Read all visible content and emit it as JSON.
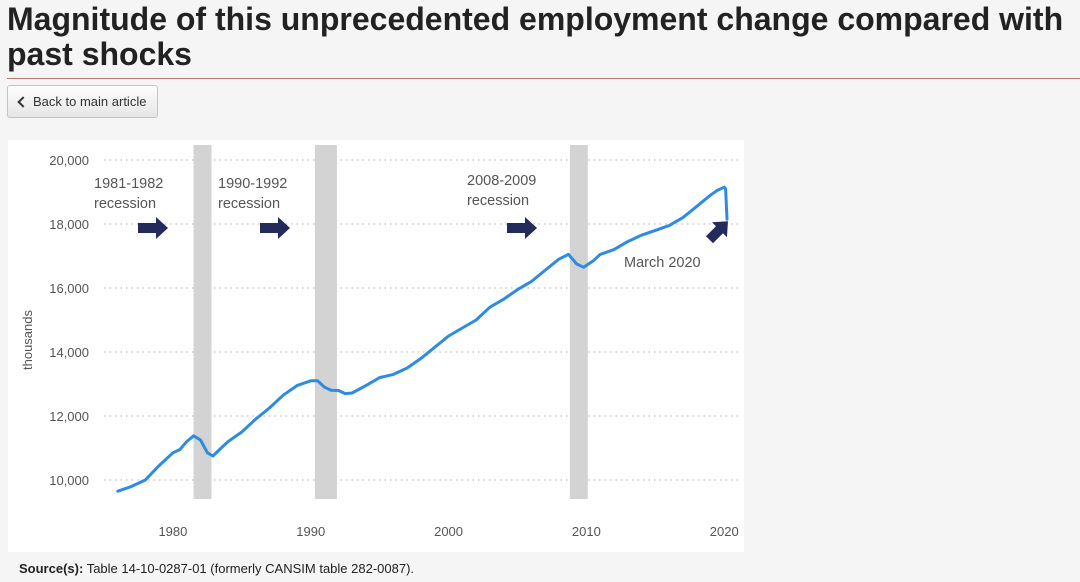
{
  "page": {
    "title": "Magnitude of this unprecedented employment change compared with past shocks",
    "back_label": "Back to main article",
    "source_label": "Source(s):",
    "source_text": "Table 14-10-0287-01 (formerly CANSIM table 282-0087)."
  },
  "colors": {
    "line": "#2e8be0",
    "recession_band": "#d3d3d3",
    "arrow": "#232a5c",
    "grid": "#b0b0b0",
    "text": "#555555"
  },
  "chart_data": {
    "type": "line",
    "title": "",
    "xlabel": "",
    "ylabel": "thousands",
    "ylim": [
      9500,
      20000
    ],
    "xlim": [
      1975,
      2021
    ],
    "grid": "horizontal dotted",
    "yticks": [
      10000,
      12000,
      14000,
      16000,
      18000,
      20000
    ],
    "ytick_labels": [
      "10,000",
      "12,000",
      "14,000",
      "16,000",
      "18,000",
      "20,000"
    ],
    "xticks": [
      1980,
      1990,
      2000,
      2010,
      2020
    ],
    "xtick_labels": [
      "1980",
      "1990",
      "2000",
      "2010",
      "2020"
    ],
    "recessions": [
      {
        "label_line1": "1981-1982",
        "label_line2": "recession",
        "start": 1981.5,
        "end": 1982.8
      },
      {
        "label_line1": "1990-1992",
        "label_line2": "recession",
        "start": 1990.3,
        "end": 1991.9
      },
      {
        "label_line1": "2008-2009",
        "label_line2": "recession",
        "start": 2008.8,
        "end": 2010.1
      }
    ],
    "annotation": {
      "label": "March 2020",
      "x": 2020.2,
      "y": 18150
    },
    "series": [
      {
        "values": [
          [
            1976.0,
            9650
          ],
          [
            1977.0,
            9800
          ],
          [
            1978.0,
            10000
          ],
          [
            1979.0,
            10450
          ],
          [
            1980.0,
            10850
          ],
          [
            1980.5,
            10950
          ],
          [
            1981.0,
            11200
          ],
          [
            1981.5,
            11380
          ],
          [
            1982.0,
            11250
          ],
          [
            1982.5,
            10850
          ],
          [
            1982.9,
            10750
          ],
          [
            1983.5,
            11000
          ],
          [
            1984.0,
            11200
          ],
          [
            1985.0,
            11500
          ],
          [
            1986.0,
            11900
          ],
          [
            1987.0,
            12250
          ],
          [
            1988.0,
            12650
          ],
          [
            1989.0,
            12950
          ],
          [
            1990.0,
            13100
          ],
          [
            1990.5,
            13100
          ],
          [
            1991.0,
            12900
          ],
          [
            1991.5,
            12800
          ],
          [
            1992.0,
            12800
          ],
          [
            1992.5,
            12700
          ],
          [
            1993.0,
            12720
          ],
          [
            1994.0,
            12950
          ],
          [
            1995.0,
            13200
          ],
          [
            1996.0,
            13300
          ],
          [
            1997.0,
            13500
          ],
          [
            1998.0,
            13800
          ],
          [
            1999.0,
            14150
          ],
          [
            2000.0,
            14500
          ],
          [
            2001.0,
            14750
          ],
          [
            2002.0,
            15000
          ],
          [
            2003.0,
            15400
          ],
          [
            2004.0,
            15650
          ],
          [
            2005.0,
            15950
          ],
          [
            2006.0,
            16200
          ],
          [
            2007.0,
            16550
          ],
          [
            2008.0,
            16900
          ],
          [
            2008.7,
            17050
          ],
          [
            2009.3,
            16750
          ],
          [
            2009.8,
            16650
          ],
          [
            2010.5,
            16850
          ],
          [
            2011.0,
            17050
          ],
          [
            2012.0,
            17200
          ],
          [
            2013.0,
            17450
          ],
          [
            2014.0,
            17650
          ],
          [
            2015.0,
            17800
          ],
          [
            2016.0,
            17950
          ],
          [
            2017.0,
            18200
          ],
          [
            2018.0,
            18550
          ],
          [
            2019.0,
            18900
          ],
          [
            2019.5,
            19050
          ],
          [
            2020.0,
            19150
          ],
          [
            2020.1,
            19100
          ],
          [
            2020.2,
            18150
          ]
        ]
      }
    ]
  }
}
